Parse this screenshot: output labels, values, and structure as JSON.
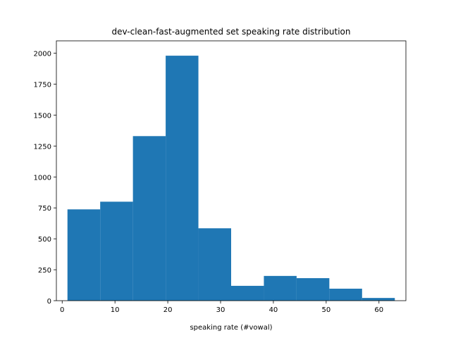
{
  "chart_data": {
    "type": "bar",
    "title": "dev-clean-fast-augmented set speaking rate distribution",
    "xlabel": "speaking rate (#vowal)",
    "ylabel": "",
    "bin_edges": [
      1.0,
      7.2,
      13.4,
      19.6,
      25.8,
      32.0,
      38.2,
      44.4,
      50.6,
      56.8,
      63.0
    ],
    "values": [
      738,
      800,
      1330,
      1980,
      585,
      120,
      200,
      182,
      97,
      22
    ],
    "xlim": [
      -1.1,
      65.1
    ],
    "ylim": [
      0,
      2100
    ],
    "xticks": [
      0,
      10,
      20,
      30,
      40,
      50,
      60
    ],
    "yticks": [
      0,
      250,
      500,
      750,
      1000,
      1250,
      1500,
      1750,
      2000
    ],
    "bar_color": "#1f77b4",
    "grid": false,
    "legend": "none"
  }
}
